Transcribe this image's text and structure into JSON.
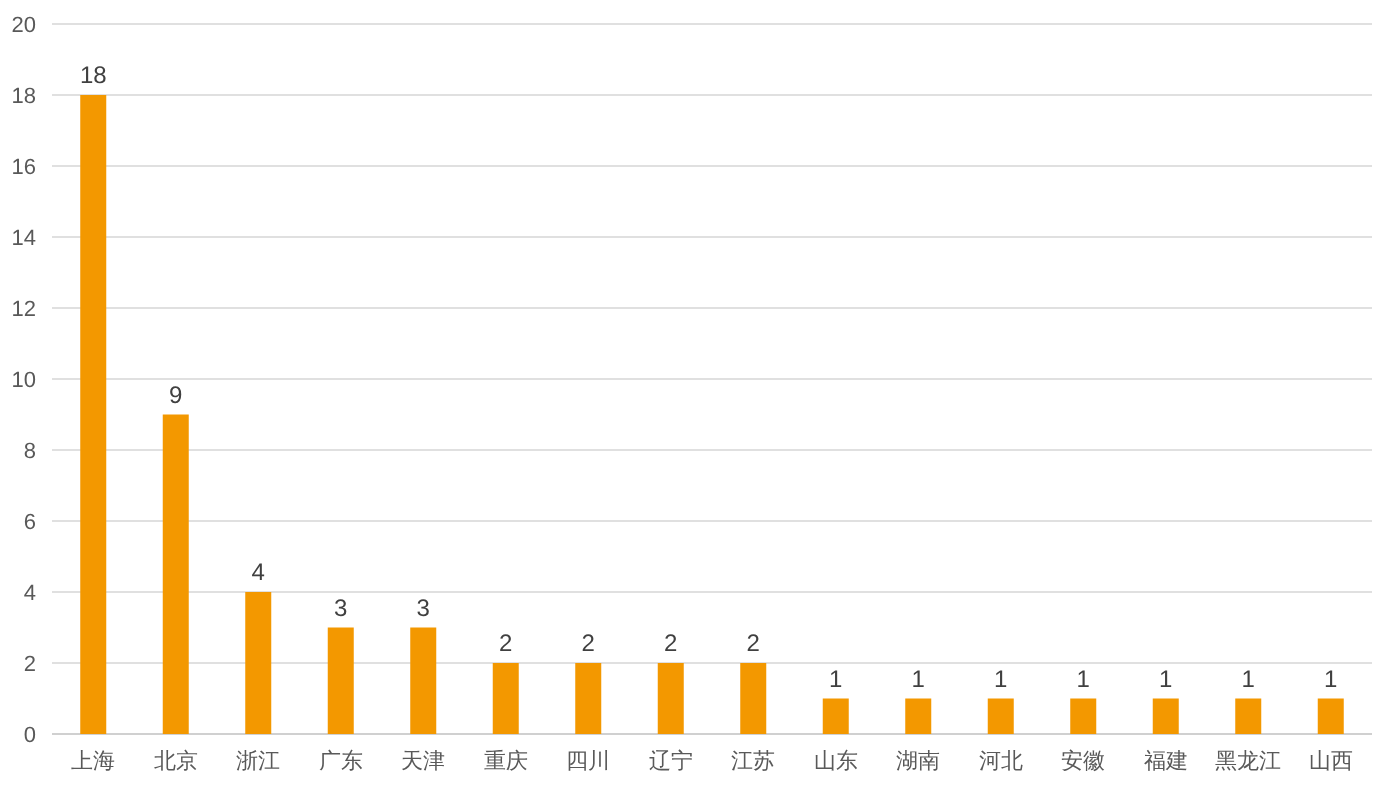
{
  "chart_data": {
    "type": "bar",
    "categories": [
      "上海",
      "北京",
      "浙江",
      "广东",
      "天津",
      "重庆",
      "四川",
      "辽宁",
      "江苏",
      "山东",
      "湖南",
      "河北",
      "安徽",
      "福建",
      "黑龙江",
      "山西"
    ],
    "values": [
      18,
      9,
      4,
      3,
      3,
      2,
      2,
      2,
      2,
      1,
      1,
      1,
      1,
      1,
      1,
      1
    ],
    "color": "#f39800",
    "ylim": [
      0,
      20
    ],
    "yticks": [
      0,
      2,
      4,
      6,
      8,
      10,
      12,
      14,
      16,
      18,
      20
    ],
    "grid": "y",
    "data_labels": true
  }
}
